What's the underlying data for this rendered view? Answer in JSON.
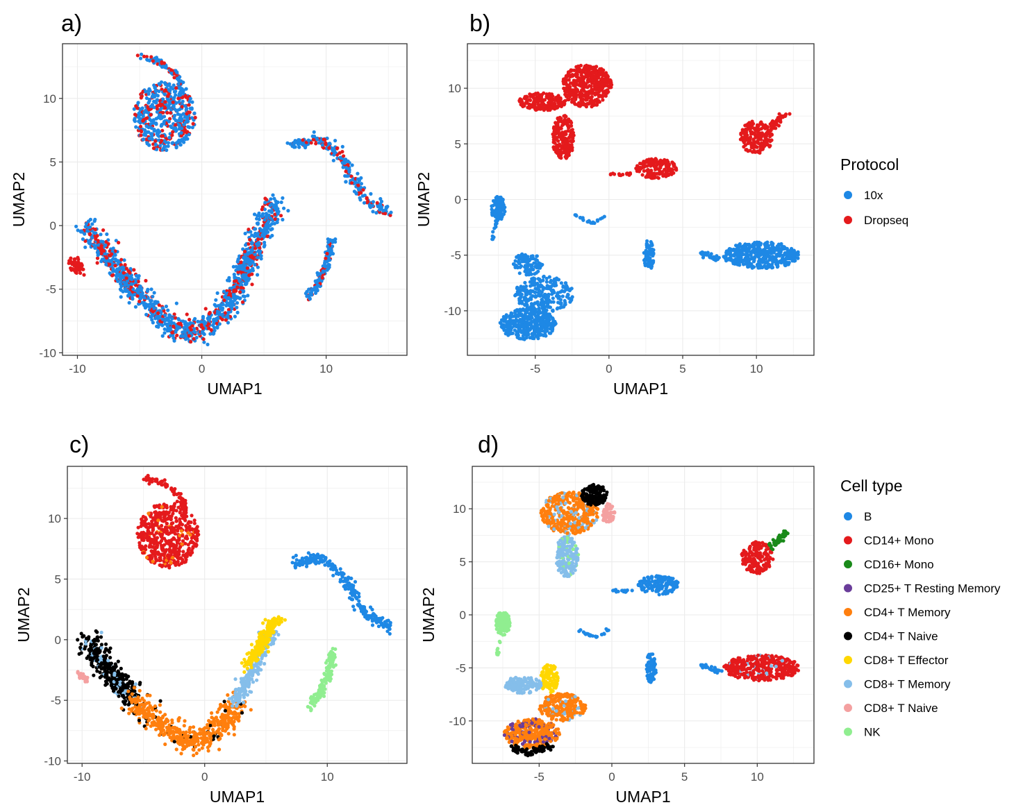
{
  "chart_data": [
    {
      "panel": "a)",
      "type": "scatter",
      "xlabel": "UMAP1",
      "ylabel": "UMAP2",
      "xlim": [
        -11.2,
        16.5
      ],
      "ylim": [
        -10.2,
        14.3
      ],
      "xticks": [
        -10,
        0,
        10
      ],
      "yticks": [
        -10,
        -5,
        0,
        5,
        10
      ],
      "xtick_labels": [
        "-10",
        "0",
        "10"
      ],
      "ytick_labels": [
        "-10",
        "-5",
        "0",
        "5",
        "10"
      ],
      "grid": true,
      "color_by": "protocol",
      "clusters": [
        {
          "group": "10x",
          "secondary": "Dropseq",
          "mix": 0.25,
          "path": [
            [
              -4.9,
              13.3
            ],
            [
              -3.5,
              13.0
            ],
            [
              -2.0,
              11.8
            ],
            [
              -1.5,
              10.5
            ]
          ],
          "spread": 0.25,
          "n": 80
        },
        {
          "group": "10x",
          "secondary": "Dropseq",
          "mix": 0.3,
          "shape": "blob",
          "cx": -3.0,
          "cy": 8.6,
          "rx": 2.5,
          "ry": 2.7,
          "n": 500
        },
        {
          "group": "10x",
          "secondary": "Dropseq",
          "mix": 0.25,
          "path": [
            [
              7.2,
              6.3
            ],
            [
              9.5,
              6.8
            ],
            [
              11.5,
              5.0
            ],
            [
              12.5,
              3.0
            ],
            [
              13.5,
              1.8
            ],
            [
              15.2,
              1.0
            ]
          ],
          "spread": 0.45,
          "n": 240
        },
        {
          "group": "10x",
          "secondary": "Dropseq",
          "mix": 0.2,
          "path": [
            [
              10.5,
              -1.0
            ],
            [
              10.0,
              -3.0
            ],
            [
              9.4,
              -4.5
            ],
            [
              8.5,
              -5.6
            ]
          ],
          "spread": 0.35,
          "n": 140
        },
        {
          "group": "10x",
          "secondary": "Dropseq",
          "mix": 0.28,
          "path": [
            [
              -9.5,
              0.0
            ],
            [
              -8.0,
              -1.8
            ],
            [
              -6.2,
              -4.2
            ],
            [
              -4.0,
              -6.6
            ],
            [
              -2.0,
              -8.2
            ],
            [
              0.0,
              -8.2
            ],
            [
              1.8,
              -6.8
            ],
            [
              3.2,
              -4.0
            ],
            [
              4.3,
              -1.6
            ],
            [
              5.3,
              0.6
            ],
            [
              6.0,
              1.6
            ]
          ],
          "spread": 0.85,
          "n": 1300
        },
        {
          "group": "Dropseq",
          "path": [
            [
              -10.3,
              -2.8
            ],
            [
              -9.8,
              -3.6
            ]
          ],
          "spread": 0.45,
          "n": 60
        }
      ]
    },
    {
      "panel": "b)",
      "type": "scatter",
      "xlabel": "UMAP1",
      "ylabel": "UMAP2",
      "xlim": [
        -9.6,
        13.9
      ],
      "ylim": [
        -14.0,
        14.0
      ],
      "xticks": [
        -5,
        0,
        5,
        10
      ],
      "yticks": [
        -10,
        -5,
        0,
        5,
        10
      ],
      "xtick_labels": [
        "-5",
        "0",
        "5",
        "10"
      ],
      "ytick_labels": [
        "-10",
        "-5",
        "0",
        "5",
        "10"
      ],
      "grid": true,
      "color_by": "protocol",
      "legend": {
        "title": "Protocol",
        "position": "right",
        "items": [
          {
            "label": "10x",
            "color": "#1E88E5"
          },
          {
            "label": "Dropseq",
            "color": "#E41A1C"
          }
        ]
      },
      "clusters": [
        {
          "group": "Dropseq",
          "shape": "blob",
          "cx": -1.5,
          "cy": 10.2,
          "rx": 1.7,
          "ry": 1.9,
          "n": 420
        },
        {
          "group": "Dropseq",
          "shape": "blob",
          "cx": -4.5,
          "cy": 8.8,
          "rx": 1.6,
          "ry": 0.8,
          "n": 180
        },
        {
          "group": "Dropseq",
          "shape": "blob",
          "cx": -3.1,
          "cy": 5.6,
          "rx": 0.75,
          "ry": 2.0,
          "n": 200
        },
        {
          "group": "Dropseq",
          "shape": "blob",
          "cx": 3.2,
          "cy": 2.8,
          "rx": 1.4,
          "ry": 0.9,
          "n": 150
        },
        {
          "group": "Dropseq",
          "path": [
            [
              0.0,
              2.3
            ],
            [
              1.5,
              2.3
            ]
          ],
          "spread": 0.12,
          "n": 15
        },
        {
          "group": "Dropseq",
          "shape": "blob",
          "cx": 10.0,
          "cy": 5.6,
          "rx": 1.1,
          "ry": 1.5,
          "n": 180
        },
        {
          "group": "Dropseq",
          "path": [
            [
              11.0,
              6.5
            ],
            [
              12.0,
              7.8
            ]
          ],
          "spread": 0.3,
          "n": 40
        },
        {
          "group": "10x",
          "shape": "blob",
          "cx": -7.5,
          "cy": -0.8,
          "rx": 0.5,
          "ry": 1.1,
          "n": 110
        },
        {
          "group": "10x",
          "path": [
            [
              -7.6,
              -1.5
            ],
            [
              -7.9,
              -3.8
            ]
          ],
          "spread": 0.08,
          "n": 12
        },
        {
          "group": "10x",
          "path": [
            [
              -2.3,
              -1.4
            ],
            [
              -1.6,
              -1.9
            ],
            [
              -1.0,
              -2.1
            ],
            [
              -0.2,
              -1.4
            ]
          ],
          "spread": 0.1,
          "n": 25
        },
        {
          "group": "10x",
          "shape": "blob",
          "cx": -5.5,
          "cy": -11.2,
          "rx": 1.9,
          "ry": 1.4,
          "n": 400
        },
        {
          "group": "10x",
          "shape": "blob",
          "cx": -4.4,
          "cy": -8.5,
          "rx": 2.0,
          "ry": 1.6,
          "n": 250
        },
        {
          "group": "10x",
          "shape": "blob",
          "cx": -5.5,
          "cy": -5.8,
          "rx": 1.0,
          "ry": 1.0,
          "n": 100
        },
        {
          "group": "10x",
          "shape": "blob",
          "cx": 2.7,
          "cy": -5.0,
          "rx": 0.35,
          "ry": 1.4,
          "n": 80
        },
        {
          "group": "10x",
          "shape": "blob",
          "cx": 10.3,
          "cy": -5.0,
          "rx": 2.6,
          "ry": 1.2,
          "n": 420
        },
        {
          "group": "10x",
          "path": [
            [
              6.2,
              -4.8
            ],
            [
              7.5,
              -5.4
            ]
          ],
          "spread": 0.2,
          "n": 30
        }
      ]
    },
    {
      "panel": "c)",
      "type": "scatter",
      "xlabel": "UMAP1",
      "ylabel": "UMAP2",
      "xlim": [
        -11.2,
        16.5
      ],
      "ylim": [
        -10.2,
        14.3
      ],
      "xticks": [
        -10,
        0,
        10
      ],
      "yticks": [
        -10,
        -5,
        0,
        5,
        10
      ],
      "xtick_labels": [
        "-10",
        "0",
        "10"
      ],
      "ytick_labels": [
        "-10",
        "-5",
        "0",
        "5",
        "10"
      ],
      "grid": true,
      "color_by": "cell type",
      "clusters": [
        {
          "group": "CD14+ Mono",
          "path": [
            [
              -4.9,
              13.3
            ],
            [
              -3.5,
              13.0
            ],
            [
              -2.0,
              11.8
            ],
            [
              -1.5,
              10.5
            ]
          ],
          "spread": 0.25,
          "n": 80
        },
        {
          "group": "CD14+ Mono",
          "secondary": "CD4+ T Memory",
          "mix": 0.06,
          "shape": "blob",
          "cx": -3.0,
          "cy": 8.6,
          "rx": 2.5,
          "ry": 2.7,
          "n": 500
        },
        {
          "group": "B",
          "path": [
            [
              7.2,
              6.3
            ],
            [
              9.5,
              6.8
            ],
            [
              11.5,
              5.0
            ],
            [
              12.5,
              3.0
            ],
            [
              13.5,
              1.8
            ],
            [
              15.2,
              1.0
            ]
          ],
          "spread": 0.45,
          "n": 240
        },
        {
          "group": "NK",
          "path": [
            [
              10.5,
              -1.0
            ],
            [
              10.0,
              -3.0
            ],
            [
              9.4,
              -4.5
            ],
            [
              8.5,
              -5.6
            ]
          ],
          "spread": 0.35,
          "n": 140
        },
        {
          "group": "CD4+ T Naive",
          "secondary": "CD8+ T Memory",
          "mix": 0.12,
          "path": [
            [
              -9.5,
              0.0
            ],
            [
              -8.5,
              -1.5
            ],
            [
              -7.0,
              -3.5
            ],
            [
              -5.8,
              -5.0
            ]
          ],
          "spread": 0.9,
          "n": 380
        },
        {
          "group": "CD8+ T Naive",
          "path": [
            [
              -10.2,
              -2.8
            ],
            [
              -9.6,
              -3.4
            ]
          ],
          "spread": 0.3,
          "n": 35
        },
        {
          "group": "CD4+ T Memory",
          "secondary": "CD4+ T Naive",
          "mix": 0.1,
          "path": [
            [
              -5.8,
              -5.0
            ],
            [
              -4.0,
              -6.6
            ],
            [
              -2.0,
              -8.2
            ],
            [
              0.0,
              -8.2
            ],
            [
              1.8,
              -6.8
            ],
            [
              2.6,
              -5.2
            ]
          ],
          "spread": 0.9,
          "n": 520
        },
        {
          "group": "CD8+ T Memory",
          "path": [
            [
              2.6,
              -5.2
            ],
            [
              3.6,
              -3.0
            ],
            [
              4.6,
              -1.0
            ],
            [
              5.6,
              0.6
            ]
          ],
          "spread": 0.6,
          "n": 250
        },
        {
          "group": "CD8+ T Effector",
          "path": [
            [
              3.5,
              -2.2
            ],
            [
              4.5,
              -0.5
            ],
            [
              5.5,
              1.2
            ],
            [
              6.0,
              1.6
            ]
          ],
          "spread": 0.5,
          "n": 220
        }
      ]
    },
    {
      "panel": "d)",
      "type": "scatter",
      "xlabel": "UMAP1",
      "ylabel": "UMAP2",
      "xlim": [
        -9.6,
        13.9
      ],
      "ylim": [
        -14.0,
        14.0
      ],
      "xticks": [
        -5,
        0,
        5,
        10
      ],
      "yticks": [
        -10,
        -5,
        0,
        5,
        10
      ],
      "xtick_labels": [
        "-5",
        "0",
        "5",
        "10"
      ],
      "ytick_labels": [
        "-10",
        "-5",
        "0",
        "5",
        "10"
      ],
      "grid": true,
      "color_by": "cell type",
      "legend": {
        "title": "Cell type",
        "position": "right",
        "items": [
          {
            "label": "B",
            "color": "#1E88E5"
          },
          {
            "label": "CD14+ Mono",
            "color": "#E41A1C"
          },
          {
            "label": "CD16+ Mono",
            "color": "#1A8A1A"
          },
          {
            "label": "CD25+ T Resting Memory",
            "color": "#6A3D9A"
          },
          {
            "label": "CD4+ T Memory",
            "color": "#FF7F0E"
          },
          {
            "label": "CD4+ T Naive",
            "color": "#000000"
          },
          {
            "label": "CD8+ T Effector",
            "color": "#FFD700"
          },
          {
            "label": "CD8+ T Memory",
            "color": "#85BEEA"
          },
          {
            "label": "CD8+ T Naive",
            "color": "#F4A0A0"
          },
          {
            "label": "NK",
            "color": "#90EE90"
          }
        ]
      },
      "clusters": [
        {
          "group": "CD4+ T Memory",
          "secondary": "CD8+ T Memory",
          "mix": 0.15,
          "shape": "blob",
          "cx": -2.9,
          "cy": 9.6,
          "rx": 2.0,
          "ry": 2.0,
          "n": 420
        },
        {
          "group": "CD4+ T Naive",
          "shape": "blob",
          "cx": -1.2,
          "cy": 11.3,
          "rx": 0.9,
          "ry": 1.0,
          "n": 120
        },
        {
          "group": "CD8+ T Naive",
          "shape": "blob",
          "cx": -0.3,
          "cy": 9.6,
          "rx": 0.5,
          "ry": 0.9,
          "n": 60
        },
        {
          "group": "CD8+ T Memory",
          "secondary": "NK",
          "mix": 0.12,
          "shape": "blob",
          "cx": -3.1,
          "cy": 5.5,
          "rx": 0.8,
          "ry": 1.9,
          "n": 200
        },
        {
          "group": "B",
          "shape": "blob",
          "cx": 3.2,
          "cy": 2.8,
          "rx": 1.4,
          "ry": 0.9,
          "n": 150
        },
        {
          "group": "B",
          "path": [
            [
              0.0,
              2.3
            ],
            [
              1.5,
              2.3
            ]
          ],
          "spread": 0.12,
          "n": 15
        },
        {
          "group": "CD14+ Mono",
          "shape": "blob",
          "cx": 10.0,
          "cy": 5.4,
          "rx": 1.1,
          "ry": 1.5,
          "n": 170
        },
        {
          "group": "CD16+ Mono",
          "path": [
            [
              11.0,
              6.5
            ],
            [
              12.0,
              7.8
            ]
          ],
          "spread": 0.3,
          "n": 50
        },
        {
          "group": "NK",
          "shape": "blob",
          "cx": -7.5,
          "cy": -0.8,
          "rx": 0.5,
          "ry": 1.1,
          "n": 110
        },
        {
          "group": "NK",
          "path": [
            [
              -7.6,
              -1.5
            ],
            [
              -7.9,
              -3.8
            ]
          ],
          "spread": 0.08,
          "n": 12
        },
        {
          "group": "B",
          "path": [
            [
              -2.3,
              -1.4
            ],
            [
              -1.6,
              -1.9
            ],
            [
              -1.0,
              -2.1
            ],
            [
              -0.2,
              -1.4
            ]
          ],
          "spread": 0.1,
          "n": 25
        },
        {
          "group": "CD4+ T Memory",
          "secondary": "CD25+ T Resting Memory",
          "mix": 0.15,
          "shape": "blob",
          "cx": -5.5,
          "cy": -11.2,
          "rx": 1.9,
          "ry": 1.4,
          "n": 380
        },
        {
          "group": "CD4+ T Naive",
          "path": [
            [
              -7.0,
              -12.5
            ],
            [
              -5.5,
              -13.0
            ],
            [
              -4.2,
              -12.3
            ]
          ],
          "spread": 0.35,
          "n": 70
        },
        {
          "group": "CD8+ T Memory",
          "shape": "blob",
          "cx": -6.1,
          "cy": -6.6,
          "rx": 1.3,
          "ry": 0.8,
          "n": 140
        },
        {
          "group": "CD8+ T Effector",
          "shape": "blob",
          "cx": -4.3,
          "cy": -6.0,
          "rx": 0.6,
          "ry": 1.4,
          "n": 110
        },
        {
          "group": "CD4+ T Memory",
          "secondary": "CD8+ T Memory",
          "mix": 0.15,
          "shape": "blob",
          "cx": -3.4,
          "cy": -8.7,
          "rx": 1.6,
          "ry": 1.3,
          "n": 230
        },
        {
          "group": "B",
          "shape": "blob",
          "cx": 2.7,
          "cy": -5.0,
          "rx": 0.35,
          "ry": 1.4,
          "n": 80
        },
        {
          "group": "CD14+ Mono",
          "secondary": "CD8+ T Memory",
          "mix": 0.06,
          "shape": "blob",
          "cx": 10.3,
          "cy": -5.0,
          "rx": 2.6,
          "ry": 1.2,
          "n": 400
        },
        {
          "group": "B",
          "path": [
            [
              6.2,
              -4.8
            ],
            [
              7.5,
              -5.4
            ]
          ],
          "spread": 0.2,
          "n": 30
        }
      ]
    }
  ],
  "colors": {
    "10x": "#1E88E5",
    "Dropseq": "#E41A1C",
    "B": "#1E88E5",
    "CD14+ Mono": "#E41A1C",
    "CD16+ Mono": "#1A8A1A",
    "CD25+ T Resting Memory": "#6A3D9A",
    "CD4+ T Memory": "#FF7F0E",
    "CD4+ T Naive": "#000000",
    "CD8+ T Effector": "#FFD700",
    "CD8+ T Memory": "#85BEEA",
    "CD8+ T Naive": "#F4A0A0",
    "NK": "#90EE90",
    "grid": "#EBEBEB",
    "axis": "#333333"
  }
}
